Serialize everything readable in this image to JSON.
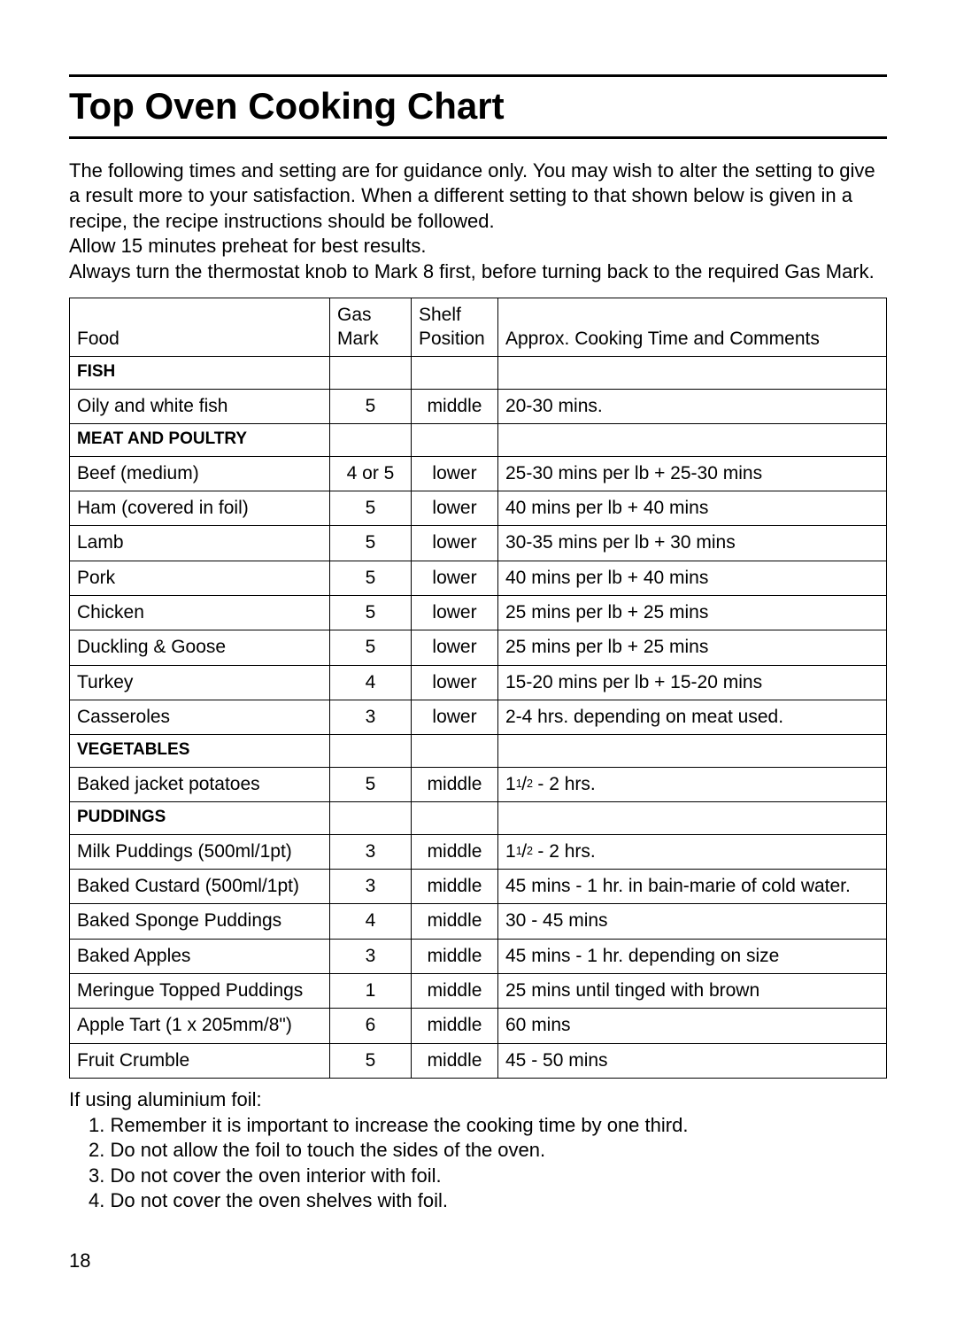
{
  "title": "Top Oven Cooking Chart",
  "intro": {
    "p1": "The following times and setting are for guidance only. You may wish to alter the setting to give a result more to your satisfaction. When a different setting to that shown below is given in a recipe, the recipe instructions should be followed.",
    "p2": "Allow 15 minutes preheat for best results.",
    "p3": "Always turn the thermostat knob to Mark 8 first, before turning back to the required Gas Mark."
  },
  "table": {
    "headers": {
      "food": "Food",
      "gas_l1": "Gas",
      "gas_l2": "Mark",
      "shelf_l1": "Shelf",
      "shelf_l2": "Position",
      "comments": "Approx. Cooking Time and Comments"
    },
    "rows": [
      {
        "type": "section",
        "food": "FISH"
      },
      {
        "food": "Oily and white fish",
        "gas": "5",
        "shelf": "middle",
        "comments": "20-30 mins."
      },
      {
        "type": "section",
        "food": "MEAT AND POULTRY"
      },
      {
        "food": "Beef (medium)",
        "gas": "4 or 5",
        "shelf": "lower",
        "comments": "25-30 mins per lb + 25-30 mins"
      },
      {
        "food": "Ham (covered in foil)",
        "gas": "5",
        "shelf": "lower",
        "comments": "40 mins per lb + 40 mins"
      },
      {
        "food": "Lamb",
        "gas": "5",
        "shelf": "lower",
        "comments": "30-35 mins per lb + 30 mins"
      },
      {
        "food": "Pork",
        "gas": "5",
        "shelf": "lower",
        "comments": "40 mins per lb + 40 mins"
      },
      {
        "food": "Chicken",
        "gas": "5",
        "shelf": "lower",
        "comments": "25 mins per lb + 25 mins"
      },
      {
        "food": "Duckling & Goose",
        "gas": "5",
        "shelf": "lower",
        "comments": "25 mins per lb + 25 mins"
      },
      {
        "food": "Turkey",
        "gas": "4",
        "shelf": "lower",
        "comments": "15-20 mins per lb + 15-20 mins"
      },
      {
        "food": "Casseroles",
        "gas": "3",
        "shelf": "lower",
        "comments": "2-4 hrs. depending on meat used."
      },
      {
        "type": "section",
        "food": "VEGETABLES"
      },
      {
        "food": "Baked jacket potatoes",
        "gas": "5",
        "shelf": "middle",
        "comments": "1½ - 2 hrs.",
        "frac": true
      },
      {
        "type": "section",
        "food": "PUDDINGS"
      },
      {
        "food": "Milk Puddings (500ml/1pt)",
        "gas": "3",
        "shelf": "middle",
        "comments": "1½ - 2 hrs.",
        "frac": true
      },
      {
        "food": "Baked Custard (500ml/1pt)",
        "gas": "3",
        "shelf": "middle",
        "comments": "45 mins - 1 hr. in bain-marie of cold water."
      },
      {
        "food": "Baked Sponge Puddings",
        "gas": "4",
        "shelf": "middle",
        "comments": "30 - 45 mins"
      },
      {
        "food": "Baked Apples",
        "gas": "3",
        "shelf": "middle",
        "comments": "45 mins - 1 hr. depending on size"
      },
      {
        "food": "Meringue Topped Puddings",
        "gas": "1",
        "shelf": "middle",
        "comments": "25 mins until tinged with brown"
      },
      {
        "food": "Apple Tart (1 x 205mm/8\")",
        "gas": "6",
        "shelf": "middle",
        "comments": "60 mins"
      },
      {
        "food": "Fruit Crumble",
        "gas": "5",
        "shelf": "middle",
        "comments": "45 - 50 mins"
      }
    ]
  },
  "notes": {
    "lead": "If using aluminium foil:",
    "items": [
      "Remember it is important to increase the cooking time by one third.",
      "Do not allow the foil to touch the sides of the oven.",
      "Do not cover the oven interior with foil.",
      "Do not cover the oven shelves with foil."
    ]
  },
  "page_number": "18"
}
